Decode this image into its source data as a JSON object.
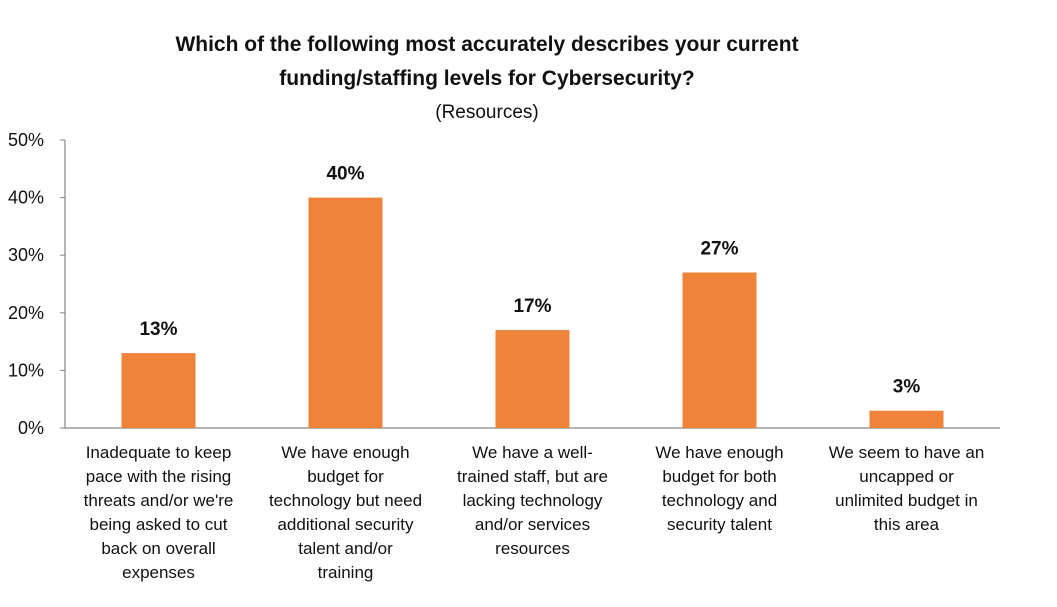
{
  "chart_data": {
    "type": "bar",
    "title_lines": [
      "Which of the following most accurately describes your current",
      "funding/staffing levels for Cybersecurity?"
    ],
    "subtitle": "(Resources)",
    "categories": [
      "Inadequate to keep pace with the rising threats and/or we're being asked to cut back on overall expenses",
      "We have enough budget for technology but need additional security talent and/or training",
      "We have a well-trained staff, but are lacking technology and/or services resources",
      "We have enough budget for both technology and security talent",
      "We seem to have an uncapped or unlimited budget in this area"
    ],
    "category_label_lines": [
      [
        "Inadequate to keep",
        "pace with the rising",
        "threats and/or we're",
        "being asked to cut",
        "back on overall",
        "expenses"
      ],
      [
        "We have enough",
        "budget for",
        "technology but need",
        "additional security",
        "talent and/or",
        "training"
      ],
      [
        "We have a well-",
        "trained staff, but are",
        "lacking technology",
        "and/or services",
        "resources"
      ],
      [
        "We have enough",
        "budget for both",
        "technology and",
        "security talent"
      ],
      [
        "We seem to have an",
        "uncapped or",
        "unlimited budget in",
        "this area"
      ]
    ],
    "values": [
      13,
      40,
      17,
      27,
      3
    ],
    "data_labels": [
      "13%",
      "40%",
      "17%",
      "27%",
      "3%"
    ],
    "ylim": [
      0,
      50
    ],
    "y_ticks": [
      0,
      10,
      20,
      30,
      40,
      50
    ],
    "y_tick_labels": [
      "0%",
      "10%",
      "20%",
      "30%",
      "40%",
      "50%"
    ],
    "xlabel": "",
    "ylabel": "",
    "grid": false,
    "legend": "none",
    "bar_color": "#F0833A",
    "axis_color": "#868686"
  }
}
